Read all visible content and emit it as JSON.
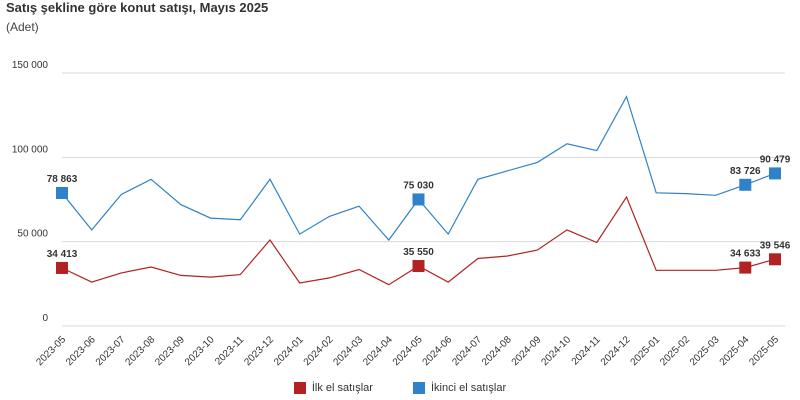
{
  "colors": {
    "first": "#b22222",
    "second": "#2f82c9",
    "grid": "#d9d9d9"
  },
  "chart_data": {
    "type": "line",
    "title": "Satış şekline göre konut satışı, Mayıs 2025",
    "subtitle": "(Adet)",
    "categories": [
      "2023-05",
      "2023-06",
      "2023-07",
      "2023-08",
      "2023-09",
      "2023-10",
      "2023-11",
      "2023-12",
      "2024-01",
      "2024-02",
      "2024-03",
      "2024-04",
      "2024-05",
      "2024-06",
      "2024-07",
      "2024-08",
      "2024-09",
      "2024-10",
      "2024-11",
      "2024-12",
      "2025-01",
      "2025-02",
      "2025-03",
      "2025-04",
      "2025-05"
    ],
    "ylim": [
      0,
      150000
    ],
    "yticks": [
      {
        "value": 0,
        "label": "0"
      },
      {
        "value": 50000,
        "label": "50 000"
      },
      {
        "value": 100000,
        "label": "100 000"
      },
      {
        "value": 150000,
        "label": "150 000"
      }
    ],
    "grid": "horizontal",
    "legend_position": "bottom",
    "series": [
      {
        "name": "İlk el satışlar",
        "color_key": "first",
        "values": [
          34413,
          26000,
          31500,
          35000,
          30000,
          29000,
          30500,
          51000,
          25500,
          28500,
          33500,
          24500,
          35550,
          26000,
          40000,
          41500,
          45000,
          57000,
          49500,
          76500,
          33000,
          33000,
          33000,
          34633,
          39546
        ],
        "labels": [
          {
            "index": 0,
            "text": "34 413"
          },
          {
            "index": 12,
            "text": "35 550"
          },
          {
            "index": 23,
            "text": "34 633"
          },
          {
            "index": 24,
            "text": "39 546"
          }
        ]
      },
      {
        "name": "İkinci el satışlar",
        "color_key": "second",
        "values": [
          78863,
          57000,
          78000,
          87000,
          72000,
          64000,
          63000,
          87000,
          54500,
          65000,
          71000,
          51000,
          75030,
          54500,
          87000,
          92000,
          97000,
          108000,
          104000,
          136000,
          79000,
          78500,
          77500,
          83726,
          90479
        ],
        "labels": [
          {
            "index": 0,
            "text": "78 863"
          },
          {
            "index": 12,
            "text": "75 030"
          },
          {
            "index": 23,
            "text": "83 726"
          },
          {
            "index": 24,
            "text": "90 479"
          }
        ]
      }
    ]
  }
}
